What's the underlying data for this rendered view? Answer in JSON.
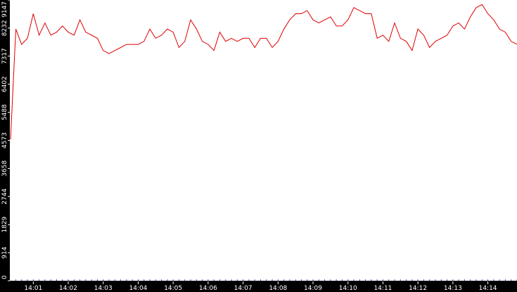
{
  "chart_data": {
    "type": "line",
    "title": "",
    "xlabel": "",
    "ylabel": "",
    "x_tick_labels": [
      "14:01",
      "14:02",
      "14:03",
      "14:04",
      "14:05",
      "14:06",
      "14:07",
      "14:08",
      "14:09",
      "14:10",
      "14:11",
      "14:12",
      "14:13",
      "14:14"
    ],
    "y_tick_labels": [
      "0",
      "914",
      "1829",
      "2744",
      "3658",
      "4573",
      "5488",
      "6402",
      "7317",
      "8232",
      "9147"
    ],
    "ylim": [
      0,
      9147
    ],
    "x_range": [
      "14:00:21",
      "14:14:50"
    ],
    "grid": false,
    "legend": "none",
    "colors": {
      "line": "#e00000",
      "axis": "#000000",
      "axis_text": "#ffffff",
      "background": "#ffffff"
    },
    "series": [
      {
        "x": [
          "14:00:21",
          "14:00:30",
          "14:00:40",
          "14:00:50",
          "14:01:00",
          "14:01:10",
          "14:01:20",
          "14:01:30",
          "14:01:40",
          "14:01:50",
          "14:02:00",
          "14:02:10",
          "14:02:20",
          "14:02:30",
          "14:02:40",
          "14:02:50",
          "14:03:00",
          "14:03:10",
          "14:03:20",
          "14:03:30",
          "14:03:40",
          "14:03:50",
          "14:04:00",
          "14:04:10",
          "14:04:20",
          "14:04:30",
          "14:04:40",
          "14:04:50",
          "14:05:00",
          "14:05:10",
          "14:05:20",
          "14:05:30",
          "14:05:40",
          "14:05:50",
          "14:06:00",
          "14:06:10",
          "14:06:20",
          "14:06:30",
          "14:06:40",
          "14:06:50",
          "14:07:00",
          "14:07:10",
          "14:07:20",
          "14:07:30",
          "14:07:40",
          "14:07:50",
          "14:08:00",
          "14:08:10",
          "14:08:20",
          "14:08:30",
          "14:08:40",
          "14:08:50",
          "14:09:00",
          "14:09:10",
          "14:09:20",
          "14:09:30",
          "14:09:40",
          "14:09:50",
          "14:10:00",
          "14:10:10",
          "14:10:20",
          "14:10:30",
          "14:10:40",
          "14:10:50",
          "14:11:00",
          "14:11:10",
          "14:11:20",
          "14:11:30",
          "14:11:40",
          "14:11:50",
          "14:12:00",
          "14:12:10",
          "14:12:20",
          "14:12:30",
          "14:12:40",
          "14:12:50",
          "14:13:00",
          "14:13:10",
          "14:13:20",
          "14:13:30",
          "14:13:40",
          "14:13:50",
          "14:14:00",
          "14:14:10",
          "14:14:20",
          "14:14:30",
          "14:14:40",
          "14:14:50"
        ],
        "values": [
          4600,
          8200,
          7700,
          7900,
          8700,
          8000,
          8400,
          8000,
          8100,
          8300,
          8100,
          8000,
          8500,
          8100,
          8000,
          7900,
          7500,
          7400,
          7500,
          7600,
          7700,
          7700,
          7700,
          7800,
          8200,
          7900,
          8000,
          8200,
          8100,
          7600,
          7800,
          8500,
          8200,
          7800,
          7700,
          7500,
          8100,
          7800,
          7900,
          7800,
          7900,
          7900,
          7600,
          7900,
          7900,
          7600,
          7800,
          8200,
          8500,
          8700,
          8700,
          8800,
          8500,
          8400,
          8500,
          8600,
          8300,
          8300,
          8500,
          8900,
          8800,
          8700,
          8700,
          7900,
          8000,
          7800,
          8400,
          7900,
          7800,
          7500,
          8200,
          8000,
          7600,
          7800,
          7900,
          8000,
          8300,
          8400,
          8200,
          8600,
          8900,
          9000,
          8700,
          8500,
          8200,
          8100,
          7800,
          7700
        ],
        "values_note": ""
      }
    ]
  }
}
